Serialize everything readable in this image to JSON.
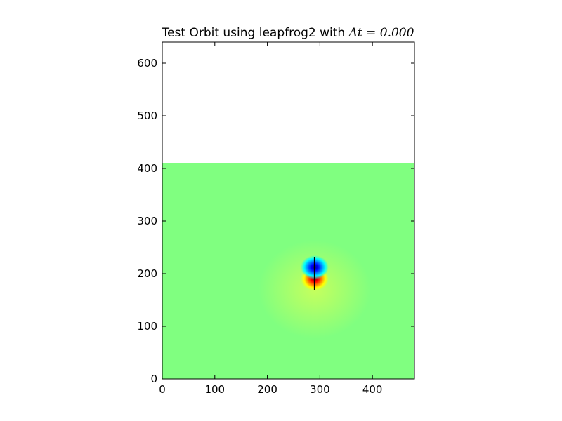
{
  "chart_data": {
    "type": "heatmap",
    "title": "Test Orbit using leapfrog2 with Δt = 0.000",
    "title_prefix": "Test Orbit using leapfrog2 with ",
    "title_math": "Δt = 0.000",
    "xlabel": "",
    "ylabel": "",
    "xlim": [
      0,
      480
    ],
    "ylim": [
      0,
      640
    ],
    "x_ticks": [
      0,
      100,
      200,
      300,
      400
    ],
    "y_ticks": [
      0,
      100,
      200,
      300,
      400,
      500,
      600
    ],
    "grid": false,
    "legend": "none",
    "field": {
      "x_range": [
        0,
        480
      ],
      "y_range": [
        0,
        410
      ],
      "background_color": "#80ff80",
      "colormap": "jet",
      "dipole": {
        "center": [
          290,
          200
        ],
        "positive_lobe": {
          "x": 290,
          "y": 190,
          "color": "red"
        },
        "negative_lobe": {
          "x": 290,
          "y": 212,
          "color": "blue"
        }
      }
    },
    "orbit": {
      "color": "#000000",
      "x": [
        290,
        290
      ],
      "y": [
        168,
        232
      ]
    }
  },
  "colors": {
    "axes": "#000000",
    "background": "#ffffff"
  }
}
